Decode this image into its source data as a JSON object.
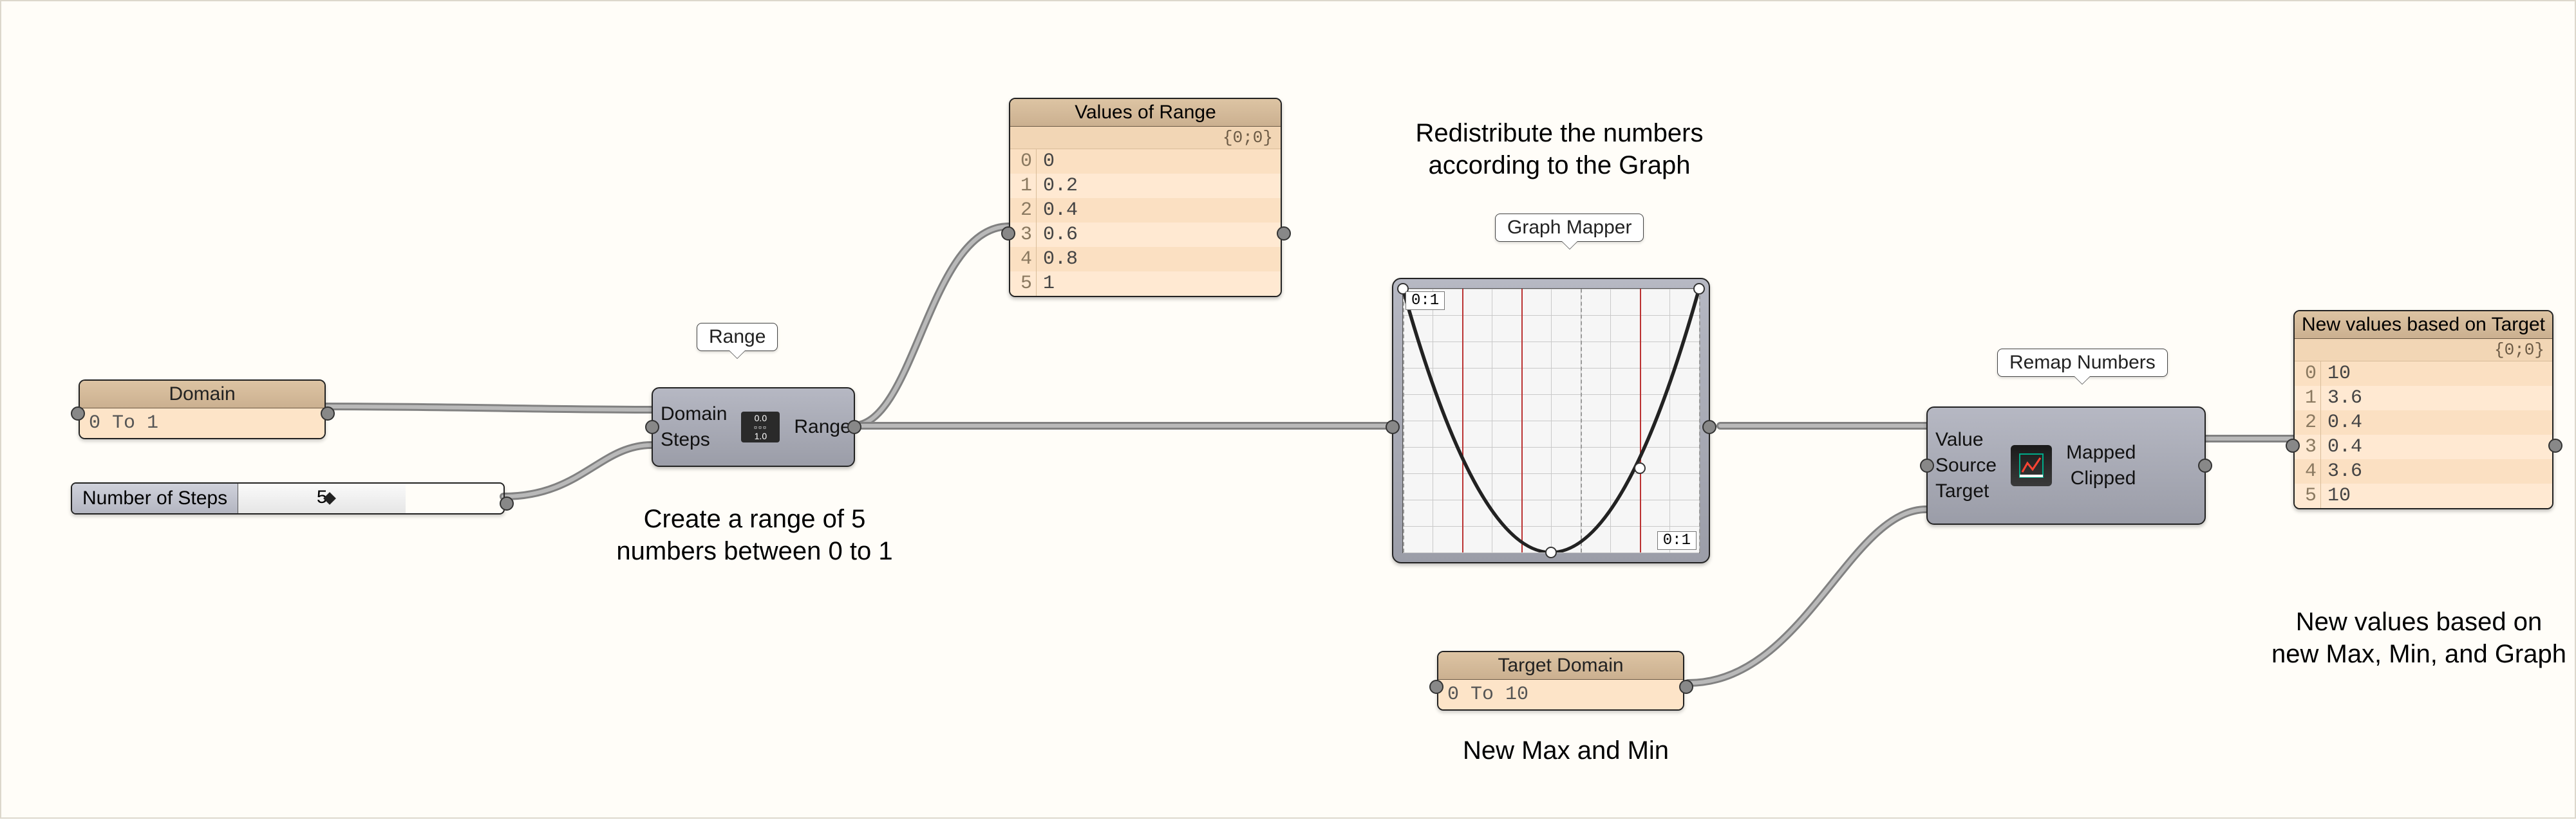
{
  "annotations": {
    "range_note": "Create a range of 5\nnumbers between 0 to 1",
    "redistribute": "Redistribute the numbers\naccording to the Graph",
    "new_maxmin": "New Max and Min",
    "new_values": "New values based on\nnew Max, Min, and Graph"
  },
  "callouts": {
    "range": "Range",
    "graph_mapper": "Graph Mapper",
    "remap": "Remap Numbers"
  },
  "domain_param": {
    "title": "Domain",
    "value": "0 To 1"
  },
  "steps_slider": {
    "label": "Number of Steps",
    "value": "5"
  },
  "range_component": {
    "inputs": [
      "Domain",
      "Steps"
    ],
    "outputs": [
      "Range"
    ],
    "icon_top": "0.0",
    "icon_bottom": "1.0"
  },
  "values_panel": {
    "title": "Values of Range",
    "path": "{0;0}",
    "indices": [
      "0",
      "1",
      "2",
      "3",
      "4",
      "5"
    ],
    "values": [
      "0",
      "0.2",
      "0.4",
      "0.6",
      "0.8",
      "1"
    ]
  },
  "graph_mapper": {
    "tag_tl": "0:1",
    "tag_br": "0:1",
    "curve_type": "parabola",
    "sample_positions_pct": [
      0,
      20,
      40,
      60,
      80,
      100
    ],
    "grid_step_pct": 10,
    "curve_color": "#222222",
    "sample_color_red": "#bb3333",
    "bg": "#f6f6f6"
  },
  "target_domain": {
    "title": "Target Domain",
    "value": "0 To 10"
  },
  "remap_component": {
    "inputs": [
      "Value",
      "Source",
      "Target"
    ],
    "outputs": [
      "Mapped",
      "Clipped"
    ]
  },
  "new_values_panel": {
    "title": "New values based on Target",
    "path": "{0;0}",
    "indices": [
      "0",
      "1",
      "2",
      "3",
      "4",
      "5"
    ],
    "values": [
      "10",
      "3.6",
      "0.4",
      "0.4",
      "3.6",
      "10"
    ]
  },
  "colors": {
    "canvas_bg": "#fffdf8",
    "comp_bg_top": "#b6b8c3",
    "comp_bg_bot": "#9b9da8",
    "panel_bg": "#fde4c8",
    "panel_header_top": "#ddc4a3",
    "panel_header_bot": "#cbb090",
    "wire_outer": "#818181",
    "wire_inner": "#b9b9b9"
  }
}
